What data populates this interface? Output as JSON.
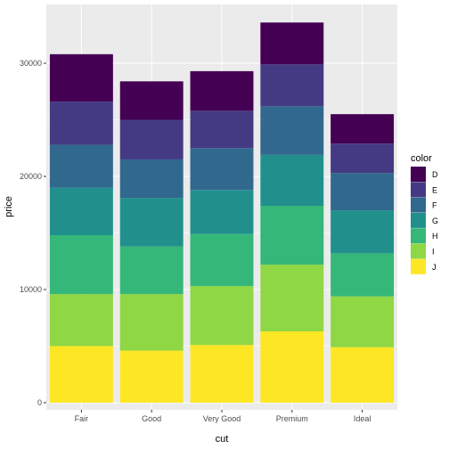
{
  "chart_data": {
    "type": "bar",
    "stacked": true,
    "xlabel": "cut",
    "ylabel": "price",
    "categories": [
      "Fair",
      "Good",
      "Very Good",
      "Premium",
      "Ideal"
    ],
    "ylim": [
      0,
      33500
    ],
    "yticks": [
      0,
      10000,
      20000,
      30000
    ],
    "grid": true,
    "legend": {
      "title": "color",
      "position": "right"
    },
    "series": [
      {
        "name": "J",
        "color": "#FDE725",
        "values": [
          5000,
          4600,
          5100,
          6300,
          4900
        ]
      },
      {
        "name": "I",
        "color": "#8FD744",
        "values": [
          4600,
          5000,
          5200,
          5900,
          4500
        ]
      },
      {
        "name": "H",
        "color": "#35B779",
        "values": [
          5200,
          4200,
          4600,
          5200,
          3800
        ]
      },
      {
        "name": "G",
        "color": "#21908C",
        "values": [
          4200,
          4300,
          3900,
          4500,
          3800
        ]
      },
      {
        "name": "F",
        "color": "#31688E",
        "values": [
          3800,
          3400,
          3700,
          4300,
          3300
        ]
      },
      {
        "name": "E",
        "color": "#443A83",
        "values": [
          3800,
          3500,
          3300,
          3700,
          2600
        ]
      },
      {
        "name": "D",
        "color": "#440154",
        "values": [
          4200,
          3400,
          3500,
          3700,
          2600
        ]
      }
    ]
  }
}
